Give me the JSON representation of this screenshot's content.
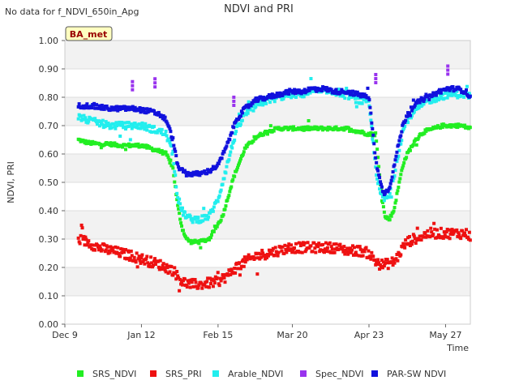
{
  "chart_data": {
    "type": "scatter",
    "title": "NDVI and PRI",
    "top_left_note": "No data for f_NDVI_650in_Apg",
    "badge": "BA_met",
    "xlabel": "Time",
    "ylabel": "NDVI, PRI",
    "ylim": [
      0.0,
      1.0
    ],
    "yticks": [
      "0.00",
      "0.10",
      "0.20",
      "0.30",
      "0.40",
      "0.50",
      "0.60",
      "0.70",
      "0.80",
      "0.90",
      "1.00"
    ],
    "x_unit": "days since Dec 9",
    "xlim": [
      0,
      180
    ],
    "xticks": [
      {
        "label": "Dec 9",
        "day": 0
      },
      {
        "label": "Jan 12",
        "day": 34
      },
      {
        "label": "Feb 15",
        "day": 68
      },
      {
        "label": "Mar 20",
        "day": 101
      },
      {
        "label": "Apr 23",
        "day": 135
      },
      {
        "label": "May 27",
        "day": 169
      }
    ],
    "legend_position": "bottom",
    "series": [
      {
        "name": "SRS_NDVI",
        "color": "#22ee22",
        "x": [
          6,
          10,
          15,
          20,
          25,
          30,
          34,
          38,
          42,
          45,
          48,
          50,
          52,
          54,
          56,
          60,
          64,
          70,
          75,
          80,
          85,
          90,
          95,
          100,
          105,
          110,
          115,
          120,
          125,
          130,
          135,
          138,
          140,
          142,
          144,
          146,
          148,
          150,
          152,
          155,
          158,
          160,
          164,
          168,
          172,
          176,
          180
        ],
        "y": [
          0.65,
          0.64,
          0.635,
          0.635,
          0.63,
          0.63,
          0.63,
          0.62,
          0.61,
          0.6,
          0.55,
          0.42,
          0.34,
          0.3,
          0.29,
          0.29,
          0.3,
          0.38,
          0.52,
          0.62,
          0.66,
          0.68,
          0.69,
          0.69,
          0.69,
          0.69,
          0.69,
          0.69,
          0.69,
          0.68,
          0.67,
          0.67,
          0.5,
          0.38,
          0.37,
          0.4,
          0.48,
          0.56,
          0.6,
          0.64,
          0.67,
          0.68,
          0.69,
          0.7,
          0.7,
          0.7,
          0.69
        ]
      },
      {
        "name": "SRS_PRI",
        "color": "#ee1111",
        "x": [
          6,
          10,
          15,
          20,
          25,
          30,
          34,
          38,
          42,
          45,
          48,
          50,
          52,
          54,
          56,
          60,
          64,
          68,
          72,
          76,
          80,
          85,
          90,
          95,
          100,
          105,
          110,
          115,
          120,
          125,
          130,
          135,
          138,
          140,
          142,
          144,
          146,
          148,
          150,
          152,
          155,
          158,
          162,
          166,
          170,
          174,
          178,
          180
        ],
        "y": [
          0.3,
          0.29,
          0.27,
          0.26,
          0.25,
          0.24,
          0.23,
          0.22,
          0.21,
          0.2,
          0.19,
          0.17,
          0.15,
          0.145,
          0.14,
          0.14,
          0.145,
          0.15,
          0.17,
          0.2,
          0.22,
          0.24,
          0.25,
          0.26,
          0.27,
          0.27,
          0.27,
          0.27,
          0.27,
          0.26,
          0.26,
          0.25,
          0.22,
          0.21,
          0.21,
          0.215,
          0.22,
          0.24,
          0.27,
          0.29,
          0.3,
          0.31,
          0.32,
          0.32,
          0.32,
          0.32,
          0.32,
          0.31
        ]
      },
      {
        "name": "Arable_NDVI",
        "color": "#22eeee",
        "x": [
          6,
          10,
          15,
          20,
          25,
          30,
          34,
          38,
          42,
          45,
          48,
          50,
          52,
          54,
          56,
          60,
          64,
          68,
          72,
          76,
          80,
          85,
          90,
          95,
          100,
          105,
          110,
          115,
          120,
          125,
          130,
          135,
          138,
          140,
          142,
          144,
          146,
          148,
          150,
          152,
          155,
          158,
          162,
          166,
          170,
          174,
          178,
          180
        ],
        "y": [
          0.73,
          0.72,
          0.71,
          0.7,
          0.7,
          0.7,
          0.7,
          0.69,
          0.68,
          0.67,
          0.6,
          0.45,
          0.4,
          0.38,
          0.37,
          0.37,
          0.38,
          0.44,
          0.56,
          0.68,
          0.74,
          0.77,
          0.79,
          0.8,
          0.81,
          0.81,
          0.82,
          0.82,
          0.82,
          0.81,
          0.79,
          0.78,
          0.55,
          0.46,
          0.44,
          0.45,
          0.52,
          0.6,
          0.68,
          0.72,
          0.75,
          0.77,
          0.79,
          0.8,
          0.81,
          0.81,
          0.81,
          0.8
        ]
      },
      {
        "name": "Spec_NDVI",
        "color": "#9933ee",
        "x": [
          30,
          40,
          75,
          138,
          170
        ],
        "y": [
          0.855,
          0.865,
          0.8,
          0.88,
          0.91
        ]
      },
      {
        "name": "PAR-SW NDVI",
        "color": "#1111dd",
        "x": [
          6,
          10,
          15,
          20,
          25,
          30,
          34,
          38,
          42,
          45,
          48,
          50,
          52,
          54,
          56,
          60,
          64,
          68,
          72,
          76,
          80,
          85,
          90,
          95,
          100,
          105,
          110,
          115,
          120,
          125,
          130,
          135,
          138,
          140,
          142,
          144,
          146,
          148,
          150,
          152,
          155,
          158,
          162,
          166,
          170,
          174,
          178,
          180
        ],
        "y": [
          0.77,
          0.77,
          0.765,
          0.76,
          0.76,
          0.76,
          0.755,
          0.75,
          0.74,
          0.72,
          0.65,
          0.56,
          0.54,
          0.53,
          0.53,
          0.53,
          0.54,
          0.56,
          0.63,
          0.72,
          0.76,
          0.79,
          0.8,
          0.81,
          0.82,
          0.82,
          0.83,
          0.83,
          0.82,
          0.82,
          0.81,
          0.8,
          0.58,
          0.5,
          0.46,
          0.48,
          0.55,
          0.63,
          0.7,
          0.74,
          0.77,
          0.79,
          0.8,
          0.82,
          0.83,
          0.83,
          0.82,
          0.8
        ]
      }
    ]
  }
}
